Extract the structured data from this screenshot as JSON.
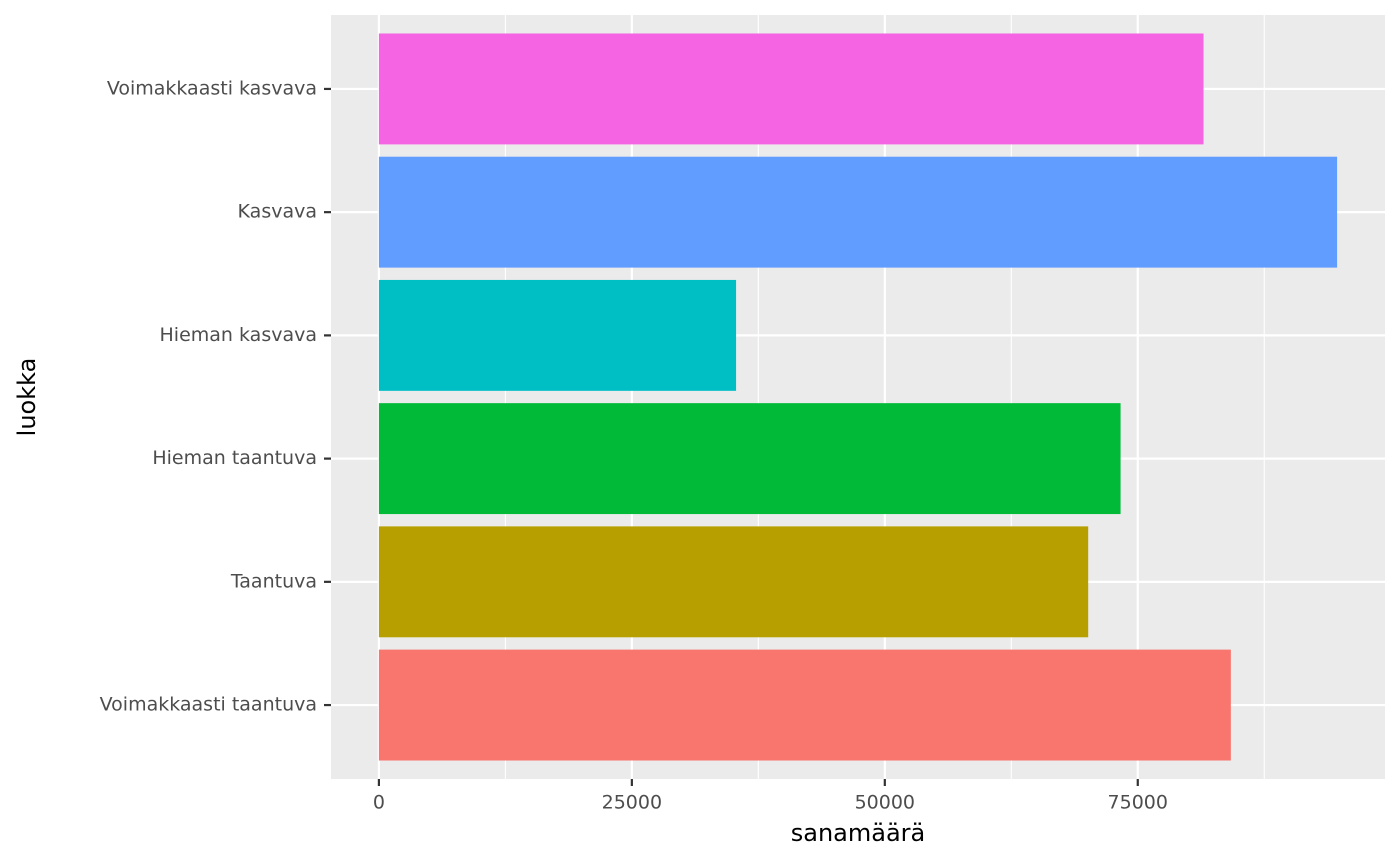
{
  "chart_data": {
    "type": "bar",
    "orientation": "horizontal",
    "x_label": "sanamäärä",
    "y_label": "luokka",
    "categories": [
      "Voimakkaasti taantuva",
      "Taantuva",
      "Hieman taantuva",
      "Hieman kasvava",
      "Kasvava",
      "Voimakkaasti kasvava"
    ],
    "values": [
      84200,
      70100,
      73300,
      35300,
      94700,
      81500
    ],
    "colors": [
      "#F8766D",
      "#B79F00",
      "#00BA38",
      "#00BFC4",
      "#619CFF",
      "#F564E3"
    ],
    "xlim": [
      -4735,
      99435
    ],
    "xticks": [
      0,
      25000,
      50000,
      75000
    ],
    "xminorticks": [
      12500,
      37500,
      62500,
      87500
    ],
    "grid": true
  }
}
